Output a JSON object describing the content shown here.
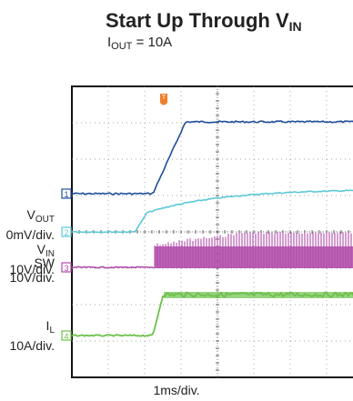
{
  "chart_data": {
    "type": "line",
    "title": "Start Up Through V",
    "title_sub": "IN",
    "subtitle": "I",
    "subtitle_sub": "OUT",
    "subtitle_rest": " = 10A",
    "xlabel": "1ms/div.",
    "grid": true,
    "trigger_marker": "T",
    "channels": [
      {
        "id": "1",
        "name": "V",
        "name_sub": "OUT",
        "scale": "0mV/div.",
        "color": "#1f4e9c"
      },
      {
        "id": "2",
        "name": "V",
        "name_sub": "IN",
        "scale": "10V/div.",
        "color": "#5cc8d6"
      },
      {
        "id": "3",
        "name": "SW",
        "name_sub": "",
        "scale": "10V/div.",
        "color": "#b04aa8"
      },
      {
        "id": "4",
        "name": "I",
        "name_sub": "L",
        "scale": "10A/div.",
        "color": "#6cc04a"
      }
    ]
  }
}
